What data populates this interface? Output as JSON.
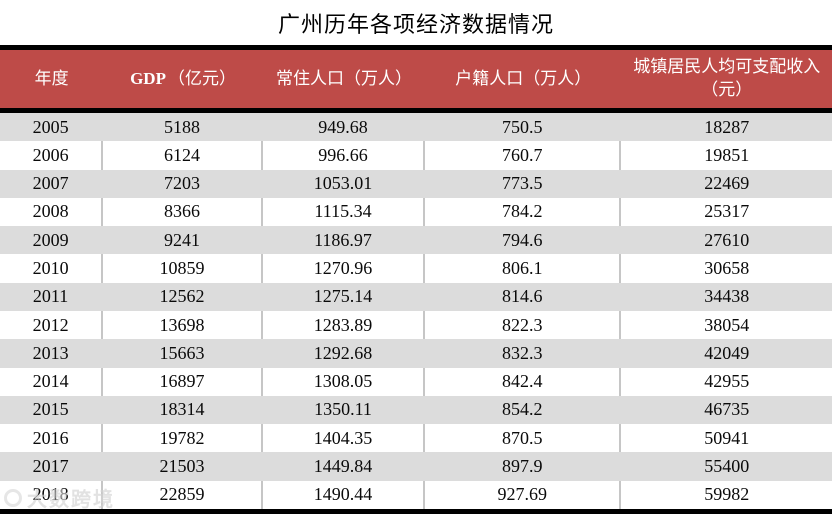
{
  "title": "广州历年各项经济数据情况",
  "watermark": "大数跨境",
  "colors": {
    "header_bg": "#be4b48",
    "band_row": "#dcdcdc",
    "divider": "#c6c6c6",
    "frame": "#000000",
    "header_text": "#ffffff"
  },
  "table": {
    "columns": [
      {
        "id": "year",
        "parts": [
          {
            "text": "年度",
            "bold": false
          }
        ]
      },
      {
        "id": "gdp",
        "parts": [
          {
            "text": "GDP",
            "bold": true
          },
          {
            "text": "（亿元）",
            "bold": false
          }
        ]
      },
      {
        "id": "resident-population",
        "parts": [
          {
            "text": "常住人口（万人）",
            "bold": false
          }
        ]
      },
      {
        "id": "registered-population",
        "parts": [
          {
            "text": "户籍人口（万人）",
            "bold": false
          }
        ]
      },
      {
        "id": "disposable-income",
        "parts": [
          {
            "text": "城镇居民人均可支配收入（元）",
            "bold": false
          }
        ]
      }
    ],
    "rows": [
      [
        "2005",
        "5188",
        "949.68",
        "750.5",
        "18287"
      ],
      [
        "2006",
        "6124",
        "996.66",
        "760.7",
        "19851"
      ],
      [
        "2007",
        "7203",
        "1053.01",
        "773.5",
        "22469"
      ],
      [
        "2008",
        "8366",
        "1115.34",
        "784.2",
        "25317"
      ],
      [
        "2009",
        "9241",
        "1186.97",
        "794.6",
        "27610"
      ],
      [
        "2010",
        "10859",
        "1270.96",
        "806.1",
        "30658"
      ],
      [
        "2011",
        "12562",
        "1275.14",
        "814.6",
        "34438"
      ],
      [
        "2012",
        "13698",
        "1283.89",
        "822.3",
        "38054"
      ],
      [
        "2013",
        "15663",
        "1292.68",
        "832.3",
        "42049"
      ],
      [
        "2014",
        "16897",
        "1308.05",
        "842.4",
        "42955"
      ],
      [
        "2015",
        "18314",
        "1350.11",
        "854.2",
        "46735"
      ],
      [
        "2016",
        "19782",
        "1404.35",
        "870.5",
        "50941"
      ],
      [
        "2017",
        "21503",
        "1449.84",
        "897.9",
        "55400"
      ],
      [
        "2018",
        "22859",
        "1490.44",
        "927.69",
        "59982"
      ]
    ]
  },
  "chart_data": {
    "type": "table",
    "title": "广州历年各项经济数据情况",
    "columns": [
      "年度",
      "GDP（亿元）",
      "常住人口（万人）",
      "户籍人口（万人）",
      "城镇居民人均可支配收入（元）"
    ],
    "rows": [
      [
        "2005",
        "5188",
        "949.68",
        "750.5",
        "18287"
      ],
      [
        "2006",
        "6124",
        "996.66",
        "760.7",
        "19851"
      ],
      [
        "2007",
        "7203",
        "1053.01",
        "773.5",
        "22469"
      ],
      [
        "2008",
        "8366",
        "1115.34",
        "784.2",
        "25317"
      ],
      [
        "2009",
        "9241",
        "1186.97",
        "794.6",
        "27610"
      ],
      [
        "2010",
        "10859",
        "1270.96",
        "806.1",
        "30658"
      ],
      [
        "2011",
        "12562",
        "1275.14",
        "814.6",
        "34438"
      ],
      [
        "2012",
        "13698",
        "1283.89",
        "822.3",
        "38054"
      ],
      [
        "2013",
        "15663",
        "1292.68",
        "832.3",
        "42049"
      ],
      [
        "2014",
        "16897",
        "1308.05",
        "842.4",
        "42955"
      ],
      [
        "2015",
        "18314",
        "1350.11",
        "854.2",
        "46735"
      ],
      [
        "2016",
        "19782",
        "1404.35",
        "870.5",
        "50941"
      ],
      [
        "2017",
        "21503",
        "1449.84",
        "897.9",
        "55400"
      ],
      [
        "2018",
        "22859",
        "1490.44",
        "927.69",
        "59982"
      ]
    ]
  }
}
